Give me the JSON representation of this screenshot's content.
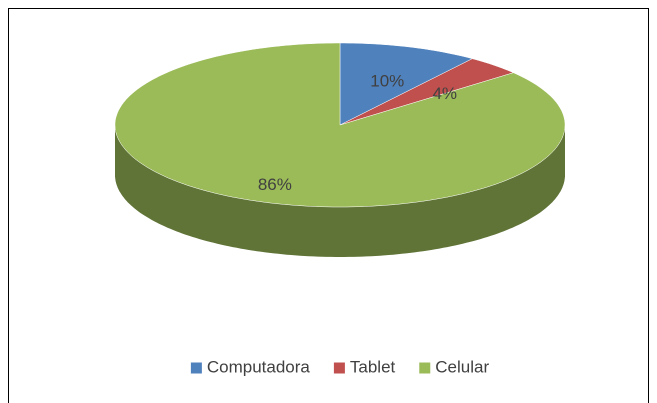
{
  "chart_data": {
    "type": "pie",
    "categories": [
      "Computadora",
      "Tablet",
      "Celular"
    ],
    "values": [
      10,
      4,
      86
    ],
    "value_labels": [
      "10%",
      "4%",
      "86%"
    ],
    "colors": [
      "#4f81bd",
      "#c0504d",
      "#9bbb59"
    ],
    "legend": "bottom"
  }
}
